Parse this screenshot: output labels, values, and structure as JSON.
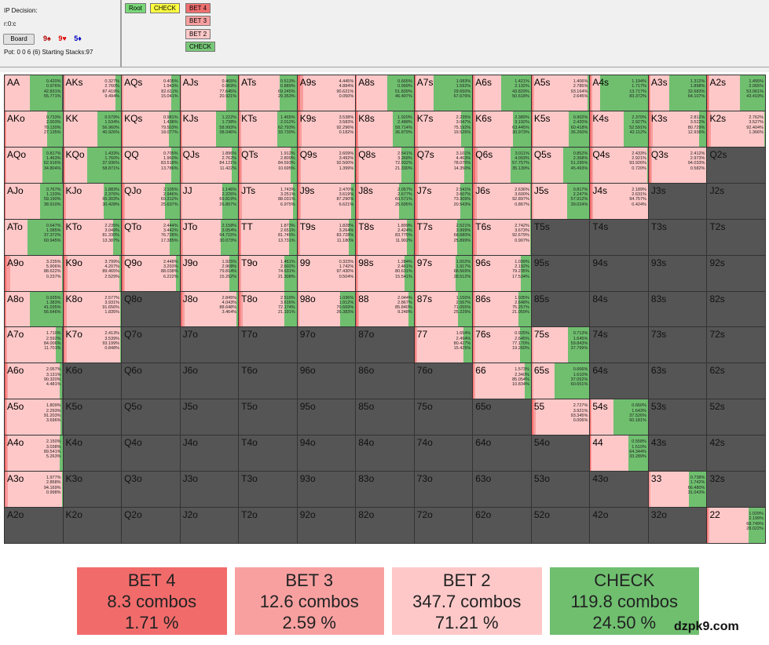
{
  "info": {
    "decision": "IP Decision:",
    "line": "r:0:c",
    "board_label": "Board",
    "cards": [
      {
        "text": "9♠",
        "color": "#b00000"
      },
      {
        "text": "9♥",
        "color": "#e00000"
      },
      {
        "text": "5♦",
        "color": "#0000c0"
      }
    ],
    "pot": "Pot: 0 0 6 (6) Starting Stacks:97"
  },
  "tree": {
    "nodes": [
      {
        "label": "Root",
        "color": "#78d878"
      },
      {
        "label": "CHECK",
        "color": "#ffff40"
      },
      {
        "label": "BET 4",
        "color": "#f07070"
      },
      {
        "label": "BET 3",
        "color": "#f8a0a0"
      },
      {
        "label": "BET 2",
        "color": "#ffc8c8"
      },
      {
        "label": "CHECK",
        "color": "#78c878"
      }
    ]
  },
  "colors": {
    "bet4": "#f26b6b",
    "bet3": "#f89c9c",
    "bet2": "#ffc8c8",
    "check": "#6fbf6f",
    "empty": "#555555"
  },
  "grid": {
    "rows": [
      [
        "AA",
        "AKs",
        "AQs",
        "AJs",
        "ATs",
        "A9s",
        "A8s",
        "A7s",
        "A6s",
        "A5s",
        "A4s",
        "A3s",
        "A2s"
      ],
      [
        "AKo",
        "KK",
        "KQs",
        "KJs",
        "KTs",
        "K9s",
        "K8s",
        "K7s",
        "K6s",
        "K5s",
        "K4s",
        "K3s",
        "K2s"
      ],
      [
        "AQo",
        "KQo",
        "QQ",
        "QJs",
        "QTs",
        "Q9s",
        "Q8s",
        "Q7s",
        "Q6s",
        "Q5s",
        "Q4s",
        "Q3s",
        "Q2s"
      ],
      [
        "AJo",
        "KJo",
        "QJo",
        "JJ",
        "JTs",
        "J9s",
        "J8s",
        "J7s",
        "J6s",
        "J5s",
        "J4s",
        "J3s",
        "J2s"
      ],
      [
        "ATo",
        "KTo",
        "QTo",
        "JTo",
        "TT",
        "T9s",
        "T8s",
        "T7s",
        "T6s",
        "T5s",
        "T4s",
        "T3s",
        "T2s"
      ],
      [
        "A9o",
        "K9o",
        "Q9o",
        "J9o",
        "T9o",
        "99",
        "98s",
        "97s",
        "96s",
        "95s",
        "94s",
        "93s",
        "92s"
      ],
      [
        "A8o",
        "K8o",
        "Q8o",
        "J8o",
        "T8o",
        "98o",
        "88",
        "87s",
        "86s",
        "85s",
        "84s",
        "83s",
        "82s"
      ],
      [
        "A7o",
        "K7o",
        "Q7o",
        "J7o",
        "T7o",
        "97o",
        "87o",
        "77",
        "76s",
        "75s",
        "74s",
        "73s",
        "72s"
      ],
      [
        "A6o",
        "K6o",
        "Q6o",
        "J6o",
        "T6o",
        "96o",
        "86o",
        "76o",
        "66",
        "65s",
        "64s",
        "63s",
        "62s"
      ],
      [
        "A5o",
        "K5o",
        "Q5o",
        "J5o",
        "T5o",
        "95o",
        "85o",
        "75o",
        "65o",
        "55",
        "54s",
        "53s",
        "52s"
      ],
      [
        "A4o",
        "K4o",
        "Q4o",
        "J4o",
        "T4o",
        "94o",
        "84o",
        "74o",
        "64o",
        "54o",
        "44",
        "43s",
        "42s"
      ],
      [
        "A3o",
        "K3o",
        "Q3o",
        "J3o",
        "T3o",
        "93o",
        "83o",
        "73o",
        "63o",
        "53o",
        "43o",
        "33",
        "32s"
      ],
      [
        "A2o",
        "K2o",
        "Q2o",
        "J2o",
        "T2o",
        "92o",
        "82o",
        "72o",
        "62o",
        "52o",
        "42o",
        "32o",
        "22"
      ]
    ],
    "freqs": {
      "AA": [
        0.42,
        0.976,
        42.831,
        55.771
      ],
      "AKs": [
        0.327,
        2.76,
        87.419,
        9.494
      ],
      "AQs": [
        0.405,
        1.943,
        82.611,
        15.041
      ],
      "AJs": [
        0.465,
        0.969,
        77.645,
        20.921
      ],
      "ATs": [
        0.513,
        0.889,
        69.245,
        29.353
      ],
      "A9s": [
        4.445,
        4.884,
        90.621,
        0.05
      ],
      "A8s": [
        0.665,
        0.999,
        51.839,
        46.497
      ],
      "A7s": [
        1.083,
        1.592,
        29.65,
        67.676
      ],
      "A6s": [
        1.421,
        2.132,
        43.829,
        50.618
      ],
      "A5s": [
        1.406,
        2.785,
        93.164,
        2.645
      ],
      "A4s": [
        1.194,
        1.717,
        13.717,
        83.372
      ],
      "A3s": [
        1.312,
        1.898,
        32.683,
        64.107
      ],
      "A2s": [
        1.455,
        2.065,
        53.061,
        43.419
      ],
      "AKo": [
        0.733,
        2.003,
        70.13,
        27.135
      ],
      "KK": [
        0.579,
        1.534,
        56.96,
        40.926
      ],
      "KQs": [
        0.981,
        1.438,
        79.503,
        18.077
      ],
      "KJs": [
        1.222,
        1.738,
        58.993,
        38.046
      ],
      "KTs": [
        1.465,
        2.012,
        62.793,
        33.73
      ],
      "K9s": [
        3.538,
        3.583,
        92.296,
        0.182
      ],
      "K8s": [
        1.92,
        2.488,
        58.714,
        36.879
      ],
      "K7s": [
        2.235,
        3.047,
        75.192,
        19.526
      ],
      "K6s": [
        2.389,
        3.192,
        63.445,
        30.973
      ],
      "K5s": [
        0.902,
        2.42,
        60.418,
        36.26
      ],
      "K4s": [
        2.37,
        2.927,
        52.591,
        42.112
      ],
      "K3s": [
        2.812,
        3.522,
        80.729,
        12.936
      ],
      "K2s": [
        2.762,
        3.527,
        92.404,
        1.366
      ],
      "AQo": [
        0.817,
        1.463,
        62.916,
        34.804
      ],
      "KQo": [
        1.433,
        1.76,
        37.936,
        58.871
      ],
      "QQ": [
        0.705,
        1.96,
        83.518,
        13.786
      ],
      "QJs": [
        1.896,
        2.762,
        84.121,
        11.422
      ],
      "QTs": [
        1.912,
        2.809,
        84.593,
        10.695
      ],
      "Q9s": [
        2.609,
        3.492,
        92.5,
        1.399
      ],
      "Q8s": [
        2.541,
        3.268,
        72.932,
        21.33
      ],
      "Q7s": [
        3.101,
        4.463,
        78.076,
        14.35
      ],
      "Q6s": [
        3.011,
        4.093,
        57.757,
        35.139
      ],
      "Q5s": [
        0.852,
        2.368,
        51.295,
        45.493
      ],
      "Q4s": [
        2.433,
        2.921,
        93.926,
        0.72
      ],
      "Q3s": [
        2.412,
        2.973,
        94.033,
        0.582
      ],
      "AJo": [
        0.767,
        1.133,
        59.19,
        38.91
      ],
      "KJo": [
        1.883,
        2.376,
        65.303,
        30.428
      ],
      "QJo": [
        2.105,
        2.946,
        69.312,
        25.637
      ],
      "JJ": [
        1.146,
        2.226,
        69.819,
        26.807
      ],
      "JTs": [
        1.743,
        3.251,
        88.031,
        6.975
      ],
      "J9s": [
        2.47,
        3.619,
        87.29,
        6.621
      ],
      "J8s": [
        2.057,
        2.677,
        69.571,
        25.695
      ],
      "J7s": [
        2.541,
        3.607,
        73.309,
        20.543
      ],
      "J6s": [
        2.636,
        3.6,
        92.897,
        0.867
      ],
      "J5s": [
        0.817,
        2.247,
        57.912,
        39.024
      ],
      "J4s": [
        2.189,
        2.631,
        94.757,
        0.424
      ],
      "ATo": [
        0.647,
        1.085,
        37.372,
        60.945
      ],
      "KTo": [
        2.235,
        3.049,
        81.33,
        13.387
      ],
      "QTo": [
        2.444,
        3.442,
        76.728,
        17.385
      ],
      "JTo": [
        2.158,
        3.054,
        64.715,
        30.073
      ],
      "TT": [
        1.873,
        2.651,
        81.745,
        13.731
      ],
      "T9s": [
        1.828,
        3.264,
        83.728,
        11.18
      ],
      "T8s": [
        1.899,
        2.424,
        83.775,
        11.902
      ],
      "T7s": [
        2.521,
        3.999,
        68.68,
        25.899
      ],
      "T6s": [
        2.742,
        3.673,
        92.679,
        0.907
      ],
      "A9o": [
        3.235,
        5.906,
        88.622,
        0.237
      ],
      "K9o": [
        3.799,
        4.207,
        89.465,
        2.529
      ],
      "Q9o": [
        2.448,
        3.293,
        88.038,
        6.222
      ],
      "J9o": [
        1.925,
        2.968,
        79.814,
        15.292
      ],
      "T9o": [
        1.461,
        2.602,
        74.631,
        21.308
      ],
      "99": [
        0.323,
        1.742,
        97.43,
        0.504
      ],
      "98s": [
        1.284,
        2.461,
        80.631,
        15.541
      ],
      "97s": [
        1.002,
        1.917,
        68.569,
        28.512
      ],
      "96s": [
        1.039,
        2.192,
        79.235,
        17.534
      ],
      "A8o": [
        0.935,
        1.383,
        41.035,
        56.646
      ],
      "K8o": [
        2.577,
        3.931,
        91.656,
        1.835
      ],
      "J8o": [
        2.845,
        4.043,
        88.648,
        3.464
      ],
      "T8o": [
        2.519,
        3.616,
        72.174,
        21.191
      ],
      "98o": [
        1.036,
        1.912,
        70.669,
        26.383
      ],
      "88": [
        2.044,
        2.867,
        85.84,
        9.248
      ],
      "87s": [
        1.15,
        2.567,
        71.055,
        25.229
      ],
      "86s": [
        1.035,
        2.648,
        75.257,
        21.059
      ],
      "A7o": [
        1.71,
        2.592,
        84.006,
        11.701
      ],
      "K7o": [
        2.413,
        3.539,
        93.199,
        0.848
      ],
      "77": [
        1.654,
        2.494,
        80.427,
        15.425
      ],
      "76s": [
        0.925,
        2.645,
        77.17,
        19.26
      ],
      "75s": [
        0.713,
        1.645,
        59.843,
        37.799
      ],
      "A6o": [
        2.057,
        3.131,
        90.32,
        4.481
      ],
      "66": [
        1.573,
        2.34,
        85.054,
        10.834
      ],
      "65s": [
        0.666,
        1.61,
        37.052,
        60.651
      ],
      "A5o": [
        1.809,
        2.293,
        91.203,
        3.696
      ],
      "55": [
        2.727,
        3.921,
        93.345,
        0.006
      ],
      "54s": [
        0.65,
        1.643,
        37.526,
        60.181
      ],
      "A4o": [
        2.15,
        3.038,
        89.541,
        5.263
      ],
      "44": [
        0.558,
        1.51,
        64.344,
        33.289
      ],
      "A3o": [
        1.977,
        2.858,
        94.169,
        0.998
      ],
      "33": [
        0.738,
        1.742,
        66.48,
        31.043
      ],
      "22": [
        1.029,
        2.199,
        68.749,
        28.022
      ]
    }
  },
  "legend": [
    {
      "action": "BET 4",
      "combos": "8.3 combos",
      "pct": "1.71 %",
      "color": "#f26b6b"
    },
    {
      "action": "BET 3",
      "combos": "12.6 combos",
      "pct": "2.59 %",
      "color": "#f8a0a0"
    },
    {
      "action": "BET 2",
      "combos": "347.7 combos",
      "pct": "71.21 %",
      "color": "#ffc8c8"
    },
    {
      "action": "CHECK",
      "combos": "119.8 combos",
      "pct": "24.50 %",
      "color": "#6fbf6f"
    }
  ],
  "watermark": "dzpk9.com"
}
